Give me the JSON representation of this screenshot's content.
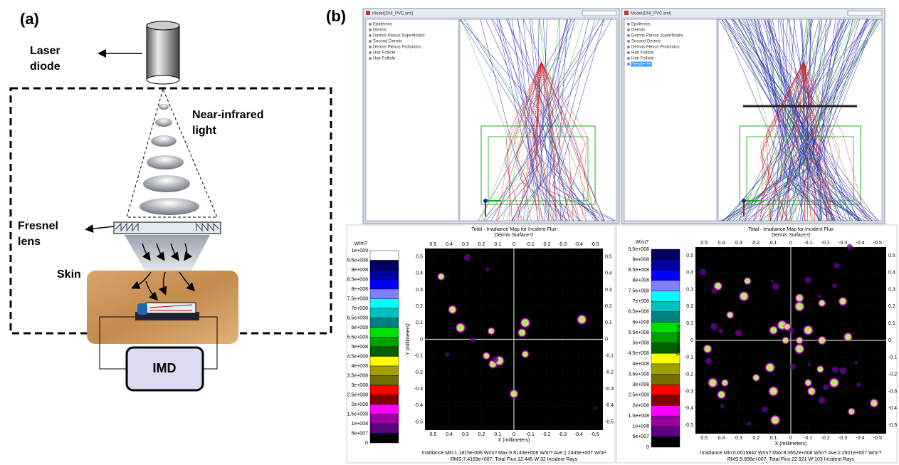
{
  "panel_a": {
    "label": "(a)",
    "laser": [
      "Laser",
      "diode"
    ],
    "light": [
      "Near-infrared",
      "light"
    ],
    "lens": [
      "Fresnel",
      "lens"
    ],
    "skin": "Skin",
    "imd": "IMD"
  },
  "panel_b": {
    "label": "(b)",
    "windows": [
      {
        "title": "Model(DNI_PVC.sml)",
        "tree": [
          "Epidermis",
          "Dermis",
          "Dermis Plexus Superficialis",
          "Second Dermis",
          "Dermis Plexus Profundus",
          "Hair Follicle",
          "Hair Follicle"
        ]
      },
      {
        "title": "Model(DNI_PVC.sml)",
        "tree": [
          "Epidermis",
          "Dermis",
          "Dermis Plexus Superficialis",
          "Second Dermis",
          "Dermis Plexus Profundus",
          "Hair Follicle",
          "Hair Follicle",
          "Fresnel lens"
        ]
      }
    ],
    "maps": [
      {
        "unit": "W/m?",
        "colorbar": [
          "1e+009",
          "9.5e+008",
          "9e+008",
          "8.5e+008",
          "8e+008",
          "7.5e+008",
          "7e+008",
          "6.5e+008",
          "6e+008",
          "5.5e+008",
          "5e+008",
          "4.5e+008",
          "4e+008",
          "3.5e+008",
          "3e+008",
          "2.5e+008",
          "2e+008",
          "1.5e+008",
          "1e+008",
          "5e+007",
          "0"
        ],
        "title": [
          "Total - Irradiance Map for Incident Flux",
          "Dermis Surface 0"
        ],
        "ticks": [
          "0.5",
          "0.4",
          "0.3",
          "0.2",
          "0.1",
          "0",
          "-0.1",
          "-0.2",
          "-0.3",
          "-0.4",
          "-0.5"
        ],
        "xlabel": "X (millimeters)",
        "ylabel": "Y (millimeters)",
        "footer": [
          "Irradiance Min:1.1815e-006 W/m? Max:9.8143e+008 W/m? Ave:1.2445e+007 W/m²",
          "RMS:7.4169e+007, Total Flux:12.445 W 32 Incident Rays"
        ]
      },
      {
        "unit": "W/m?",
        "colorbar": [
          "9.5e+008",
          "9e+008",
          "8.5e+008",
          "8e+008",
          "7.5e+008",
          "7e+008",
          "6.5e+008",
          "6e+008",
          "5.5e+008",
          "5e+008",
          "4.5e+008",
          "4e+008",
          "3.5e+008",
          "3e+008",
          "2.5e+008",
          "2e+008",
          "1.5e+008",
          "1e+008",
          "5e+007",
          "0"
        ],
        "title": [
          "Total - Irradiance Map for Incident Flux",
          "Dermis Surface 0"
        ],
        "ticks": [
          "0.5",
          "0.4",
          "0.3",
          "0.2",
          "0.1",
          "0",
          "-0.1",
          "-0.2",
          "-0.3",
          "-0.4",
          "-0.5"
        ],
        "xlabel": "X (millimeters)",
        "ylabel": "Y (millimeters)",
        "footer": [
          "Irradiance Min:0.0015842 W/m? Max:9.3652e+008 W/m? Ave:2.2921e+007 W/m?",
          "RMS:9.836e+007, Total Flux:22.921 W 103 Incident Rays"
        ]
      }
    ]
  }
}
